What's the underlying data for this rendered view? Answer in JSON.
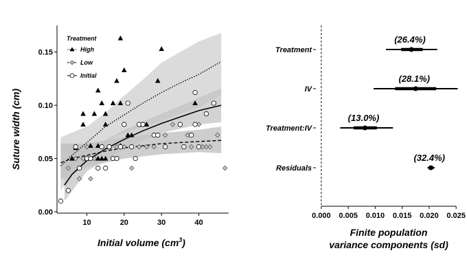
{
  "chart_data": [
    {
      "type": "scatter",
      "xlabel": "Initial volume (cm",
      "xlabel_sup": "3",
      "xlabel_close": ")",
      "ylabel": "Suture width (cm)",
      "xlim": [
        2,
        48
      ],
      "ylim": [
        0.0,
        0.175
      ],
      "xticks": [
        10,
        20,
        30,
        40
      ],
      "yticks": [
        0.0,
        0.05,
        0.1,
        0.15
      ],
      "ytick_labels": [
        "0.00",
        "0.05",
        "0.10",
        "0.15"
      ],
      "legend": {
        "title": "Treatment",
        "position": "top-left",
        "entries": [
          "High",
          "Low",
          "Initial"
        ]
      },
      "series": [
        {
          "name": "High",
          "marker": "triangle",
          "line": "dotted",
          "x": [
            6,
            7,
            9,
            9,
            10,
            11,
            12,
            13,
            13,
            13,
            14,
            14,
            15,
            15,
            15,
            16,
            17,
            18,
            19,
            19,
            19,
            20,
            21,
            22,
            25,
            26,
            29,
            30,
            39
          ],
          "y": [
            0.05,
            0.06,
            0.082,
            0.092,
            0.05,
            0.062,
            0.092,
            0.062,
            0.114,
            0.05,
            0.05,
            0.102,
            0.082,
            0.092,
            0.05,
            0.061,
            0.102,
            0.123,
            0.062,
            0.163,
            0.102,
            0.133,
            0.072,
            0.072,
            0.082,
            0.082,
            0.123,
            0.153,
            0.102
          ],
          "fit": [
            [
              3,
              0.043
            ],
            [
              6,
              0.053
            ],
            [
              10,
              0.065
            ],
            [
              15,
              0.08
            ],
            [
              20,
              0.091
            ],
            [
              25,
              0.102
            ],
            [
              30,
              0.112
            ],
            [
              35,
              0.121
            ],
            [
              40,
              0.129
            ],
            [
              46,
              0.141
            ]
          ],
          "band_upper": [
            [
              3,
              0.07
            ],
            [
              10,
              0.08
            ],
            [
              15,
              0.093
            ],
            [
              20,
              0.109
            ],
            [
              25,
              0.124
            ],
            [
              30,
              0.14
            ],
            [
              35,
              0.15
            ],
            [
              40,
              0.16
            ],
            [
              46,
              0.168
            ]
          ],
          "band_lower": [
            [
              3,
              0.02
            ],
            [
              10,
              0.052
            ],
            [
              15,
              0.066
            ],
            [
              20,
              0.074
            ],
            [
              25,
              0.08
            ],
            [
              30,
              0.085
            ],
            [
              35,
              0.092
            ],
            [
              40,
              0.098
            ],
            [
              46,
              0.11
            ]
          ]
        },
        {
          "name": "Low",
          "marker": "diamond",
          "line": "dashed",
          "x": [
            5,
            7,
            8,
            9,
            10,
            11,
            12,
            13,
            14,
            15,
            16,
            17,
            18,
            20,
            22,
            22,
            24,
            26,
            28,
            31,
            33,
            37,
            38,
            40,
            41,
            42,
            43,
            45,
            47
          ],
          "y": [
            0.041,
            0.05,
            0.031,
            0.05,
            0.061,
            0.031,
            0.05,
            0.041,
            0.061,
            0.041,
            0.061,
            0.05,
            0.061,
            0.061,
            0.061,
            0.041,
            0.061,
            0.061,
            0.061,
            0.072,
            0.082,
            0.072,
            0.061,
            0.082,
            0.061,
            0.061,
            0.061,
            0.072,
            0.041
          ],
          "fit": [
            [
              3,
              0.046
            ],
            [
              6,
              0.05
            ],
            [
              10,
              0.053
            ],
            [
              15,
              0.057
            ],
            [
              20,
              0.06
            ],
            [
              25,
              0.062
            ],
            [
              30,
              0.064
            ],
            [
              35,
              0.065
            ],
            [
              40,
              0.066
            ],
            [
              46,
              0.067
            ]
          ],
          "band_upper": [
            [
              3,
              0.064
            ],
            [
              10,
              0.064
            ],
            [
              20,
              0.07
            ],
            [
              30,
              0.074
            ],
            [
              40,
              0.077
            ],
            [
              46,
              0.08
            ]
          ],
          "band_lower": [
            [
              3,
              0.03
            ],
            [
              10,
              0.042
            ],
            [
              20,
              0.05
            ],
            [
              30,
              0.054
            ],
            [
              40,
              0.056
            ],
            [
              46,
              0.055
            ]
          ]
        },
        {
          "name": "Initial",
          "marker": "circle",
          "line": "solid",
          "x": [
            3,
            5,
            7,
            8,
            10,
            11,
            13,
            14,
            15,
            16,
            17,
            18,
            19,
            20,
            21,
            22,
            23,
            24,
            25,
            28,
            29,
            31,
            35,
            36,
            38,
            39,
            39,
            40,
            42,
            44
          ],
          "y": [
            0.01,
            0.02,
            0.061,
            0.041,
            0.05,
            0.05,
            0.041,
            0.061,
            0.041,
            0.061,
            0.05,
            0.05,
            0.061,
            0.082,
            0.102,
            0.061,
            0.05,
            0.082,
            0.082,
            0.072,
            0.072,
            0.061,
            0.082,
            0.061,
            0.072,
            0.112,
            0.082,
            0.061,
            0.092,
            0.102
          ],
          "fit": [
            [
              4,
              0.025
            ],
            [
              6,
              0.035
            ],
            [
              10,
              0.048
            ],
            [
              15,
              0.059
            ],
            [
              20,
              0.068
            ],
            [
              25,
              0.076
            ],
            [
              30,
              0.083
            ],
            [
              35,
              0.089
            ],
            [
              40,
              0.095
            ],
            [
              46,
              0.1
            ]
          ],
          "band_upper": [
            [
              4,
              0.04
            ],
            [
              10,
              0.058
            ],
            [
              20,
              0.077
            ],
            [
              30,
              0.092
            ],
            [
              40,
              0.107
            ],
            [
              46,
              0.116
            ]
          ],
          "band_lower": [
            [
              4,
              0.01
            ],
            [
              10,
              0.038
            ],
            [
              20,
              0.059
            ],
            [
              30,
              0.074
            ],
            [
              40,
              0.082
            ],
            [
              46,
              0.084
            ]
          ]
        }
      ]
    },
    {
      "type": "forest",
      "xlabel_line1": "Finite population",
      "xlabel_line2": "variance components (sd)",
      "xlim": [
        -0.001,
        0.026
      ],
      "xticks": [
        0.0,
        0.005,
        0.01,
        0.015,
        0.02,
        0.025
      ],
      "xtick_labels": [
        "0.000",
        "0.005",
        "0.010",
        "0.015",
        "0.020",
        "0.025"
      ],
      "reference_line": 0,
      "rows": [
        {
          "label": "Treatment",
          "point": 0.0167,
          "ci_outer": [
            0.012,
            0.0215
          ],
          "ci_inner": [
            0.0148,
            0.0188
          ],
          "pct": "(26.4%)"
        },
        {
          "label": "IV",
          "point": 0.0175,
          "ci_outer": [
            0.0097,
            0.0253
          ],
          "ci_inner": [
            0.0137,
            0.0213
          ],
          "pct": "(28.1%)"
        },
        {
          "label": "Treatment:IV",
          "point": 0.0081,
          "ci_outer": [
            0.0035,
            0.0133
          ],
          "ci_inner": [
            0.006,
            0.0103
          ],
          "pct": "(13.0%)"
        },
        {
          "label": "Residuals",
          "point": 0.0203,
          "ci_outer": [
            0.0197,
            0.021
          ],
          "ci_inner": [
            0.0199,
            0.0208
          ],
          "pct": "(32.4%)"
        }
      ]
    }
  ]
}
